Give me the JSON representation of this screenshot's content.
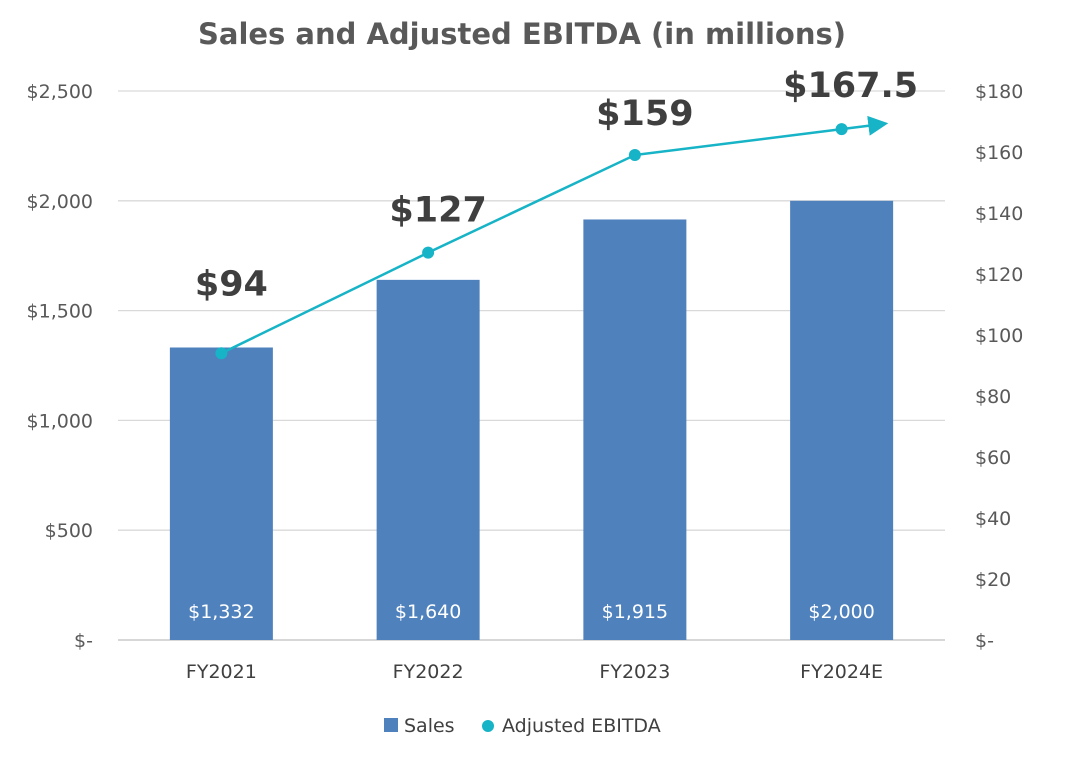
{
  "chart_data": {
    "type": "bar",
    "title": "Sales and Adjusted EBITDA (in millions)",
    "categories": [
      "FY2021",
      "FY2022",
      "FY2023",
      "FY2024E"
    ],
    "series": [
      {
        "name": "Sales",
        "type": "bar",
        "axis": "left",
        "values": [
          1332,
          1640,
          1915,
          2000
        ],
        "labels": [
          "$1,332",
          "$1,640",
          "$1,915",
          "$2,000"
        ],
        "color": "#4f81bd"
      },
      {
        "name": "Adjusted EBITDA",
        "type": "line",
        "axis": "right",
        "values": [
          94,
          127,
          159,
          167.5
        ],
        "labels": [
          "$94",
          "$127",
          "$159",
          "$167.5"
        ],
        "color": "#17b3c6"
      }
    ],
    "y_left": {
      "min": 0,
      "max": 2500,
      "ticks": [
        0,
        500,
        1000,
        1500,
        2000,
        2500
      ],
      "tick_labels": [
        "$-",
        "$500",
        "$1,000",
        "$1,500",
        "$2,000",
        "$2,500"
      ]
    },
    "y_right": {
      "min": 0,
      "max": 180,
      "ticks": [
        0,
        20,
        40,
        60,
        80,
        100,
        120,
        140,
        160,
        180
      ],
      "tick_labels": [
        "$-",
        "$20",
        "$40",
        "$60",
        "$80",
        "$100",
        "$120",
        "$140",
        "$160",
        "$180"
      ]
    },
    "grid": true,
    "legend": "bottom",
    "xlabel": "",
    "ylabel": ""
  }
}
